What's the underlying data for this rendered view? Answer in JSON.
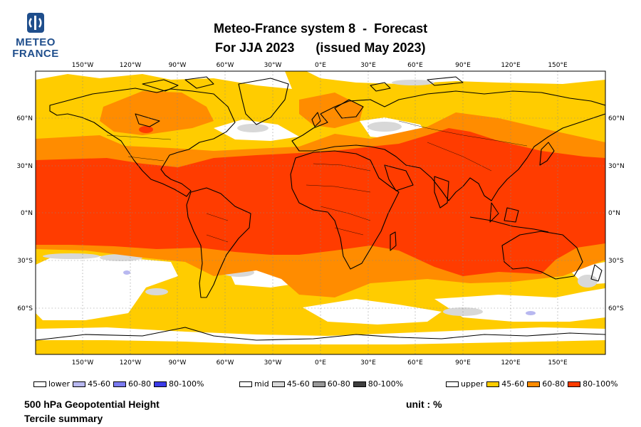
{
  "logo": {
    "line1": "METEO",
    "line2": "FRANCE",
    "icon": "meteo-france-logo-icon",
    "color": "#1f4e8c"
  },
  "title": {
    "line1": "Meteo-France system 8  -  Forecast",
    "line2": "For JJA 2023      (issued May 2023)"
  },
  "axes": {
    "lon_labels": [
      "150°W",
      "120°W",
      "90°W",
      "60°W",
      "30°W",
      "0°E",
      "30°E",
      "60°E",
      "90°E",
      "120°E",
      "150°E"
    ],
    "lat_labels": [
      "60°N",
      "30°N",
      "0°N",
      "30°S",
      "60°S"
    ]
  },
  "legend": {
    "lower": {
      "label": "lower",
      "items": [
        "45-60",
        "60-80",
        "80-100%"
      ],
      "colors": [
        "#b8b8f0",
        "#7b7bf0",
        "#3c3ce8"
      ]
    },
    "mid": {
      "label": "mid",
      "items": [
        "45-60",
        "60-80",
        "80-100%"
      ],
      "colors": [
        "#d8d8d8",
        "#9a9a9a",
        "#3f3f3f"
      ]
    },
    "upper": {
      "label": "upper",
      "items": [
        "45-60",
        "60-80",
        "80-100%"
      ],
      "colors": [
        "#ffcc00",
        "#ff8c00",
        "#ff3c00"
      ]
    }
  },
  "footer": {
    "variable": "500 hPa Geopotential Height",
    "product": "Tercile summary",
    "unit": "unit : %"
  }
}
